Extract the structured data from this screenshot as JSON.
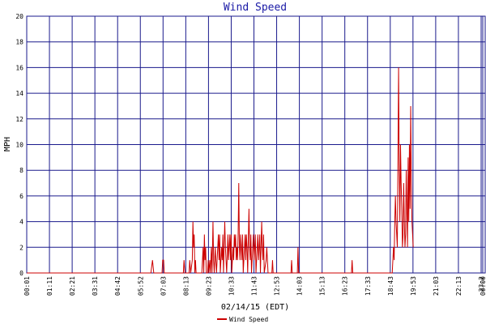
{
  "chart_data": {
    "type": "line",
    "title": "Wind Speed",
    "xlabel": "02/14/15 (EDT)",
    "ylabel": "MPH",
    "ylim": [
      0,
      20
    ],
    "yticks": [
      0,
      2,
      4,
      6,
      8,
      10,
      12,
      14,
      16,
      18,
      20
    ],
    "xlim": [
      0,
      1440
    ],
    "xtick_labels": [
      "00:01",
      "01:11",
      "02:21",
      "03:31",
      "04:42",
      "05:52",
      "07:03",
      "08:13",
      "09:23",
      "10:33",
      "11:43",
      "12:53",
      "14:03",
      "15:13",
      "16:23",
      "17:33",
      "18:43",
      "19:53",
      "21:03",
      "22:13",
      "23:2",
      "00:00"
    ],
    "grid": true,
    "legend": "bottom",
    "series": [
      {
        "name": "Wind Speed",
        "color": "#cc0000",
        "points": [
          [
            0,
            0
          ],
          [
            390,
            0
          ],
          [
            395,
            1
          ],
          [
            399,
            0
          ],
          [
            425,
            0
          ],
          [
            427,
            1
          ],
          [
            430,
            1
          ],
          [
            432,
            0
          ],
          [
            492,
            0
          ],
          [
            494,
            1
          ],
          [
            497,
            0
          ],
          [
            510,
            0
          ],
          [
            512,
            1
          ],
          [
            515,
            0
          ],
          [
            520,
            1
          ],
          [
            522,
            4
          ],
          [
            524,
            2
          ],
          [
            526,
            3
          ],
          [
            528,
            0
          ],
          [
            530,
            1
          ],
          [
            532,
            0
          ],
          [
            550,
            0
          ],
          [
            552,
            1
          ],
          [
            554,
            2
          ],
          [
            556,
            0
          ],
          [
            558,
            3
          ],
          [
            560,
            1
          ],
          [
            562,
            2
          ],
          [
            564,
            0
          ],
          [
            568,
            0
          ],
          [
            570,
            1
          ],
          [
            572,
            0
          ],
          [
            575,
            1
          ],
          [
            577,
            0
          ],
          [
            580,
            2
          ],
          [
            582,
            0
          ],
          [
            585,
            4
          ],
          [
            587,
            1
          ],
          [
            589,
            0
          ],
          [
            592,
            2
          ],
          [
            594,
            1
          ],
          [
            596,
            0
          ],
          [
            600,
            2
          ],
          [
            602,
            3
          ],
          [
            604,
            1
          ],
          [
            606,
            3
          ],
          [
            608,
            0
          ],
          [
            612,
            2
          ],
          [
            614,
            1
          ],
          [
            616,
            3
          ],
          [
            618,
            0
          ],
          [
            622,
            4
          ],
          [
            624,
            2
          ],
          [
            626,
            1
          ],
          [
            628,
            0
          ],
          [
            632,
            3
          ],
          [
            634,
            1
          ],
          [
            636,
            2
          ],
          [
            638,
            3
          ],
          [
            640,
            1
          ],
          [
            642,
            3
          ],
          [
            644,
            0
          ],
          [
            648,
            2
          ],
          [
            650,
            1
          ],
          [
            652,
            3
          ],
          [
            654,
            2
          ],
          [
            656,
            3
          ],
          [
            658,
            1
          ],
          [
            660,
            2
          ],
          [
            662,
            1
          ],
          [
            664,
            3
          ],
          [
            666,
            7
          ],
          [
            668,
            2
          ],
          [
            670,
            1
          ],
          [
            672,
            3
          ],
          [
            674,
            2
          ],
          [
            676,
            1
          ],
          [
            678,
            3
          ],
          [
            680,
            0
          ],
          [
            684,
            2
          ],
          [
            686,
            3
          ],
          [
            688,
            1
          ],
          [
            690,
            3
          ],
          [
            692,
            2
          ],
          [
            694,
            0
          ],
          [
            698,
            5
          ],
          [
            700,
            2
          ],
          [
            702,
            1
          ],
          [
            704,
            3
          ],
          [
            706,
            0
          ],
          [
            710,
            2
          ],
          [
            712,
            3
          ],
          [
            714,
            1
          ],
          [
            716,
            2
          ],
          [
            718,
            3
          ],
          [
            720,
            0
          ],
          [
            724,
            2
          ],
          [
            726,
            3
          ],
          [
            728,
            1
          ],
          [
            730,
            2
          ],
          [
            732,
            3
          ],
          [
            734,
            0
          ],
          [
            738,
            4
          ],
          [
            740,
            2
          ],
          [
            742,
            1
          ],
          [
            744,
            3
          ],
          [
            746,
            0
          ],
          [
            752,
            1
          ],
          [
            754,
            2
          ],
          [
            756,
            1
          ],
          [
            758,
            0
          ],
          [
            770,
            0
          ],
          [
            772,
            1
          ],
          [
            774,
            0
          ],
          [
            830,
            0
          ],
          [
            832,
            1
          ],
          [
            834,
            0
          ],
          [
            850,
            0
          ],
          [
            852,
            2
          ],
          [
            854,
            0
          ],
          [
            1020,
            0
          ],
          [
            1022,
            1
          ],
          [
            1024,
            0
          ],
          [
            1148,
            0
          ],
          [
            1150,
            1
          ],
          [
            1152,
            2
          ],
          [
            1154,
            1
          ],
          [
            1156,
            4
          ],
          [
            1158,
            6
          ],
          [
            1160,
            4
          ],
          [
            1162,
            3
          ],
          [
            1164,
            2
          ],
          [
            1166,
            9
          ],
          [
            1168,
            16
          ],
          [
            1170,
            8
          ],
          [
            1172,
            4
          ],
          [
            1174,
            10
          ],
          [
            1176,
            7
          ],
          [
            1178,
            5
          ],
          [
            1180,
            2
          ],
          [
            1182,
            3
          ],
          [
            1184,
            7
          ],
          [
            1186,
            4
          ],
          [
            1188,
            2
          ],
          [
            1190,
            3
          ],
          [
            1192,
            8
          ],
          [
            1194,
            5
          ],
          [
            1196,
            2
          ],
          [
            1198,
            9
          ],
          [
            1200,
            4
          ],
          [
            1202,
            10
          ],
          [
            1204,
            5
          ],
          [
            1206,
            13
          ],
          [
            1208,
            7
          ],
          [
            1210,
            4
          ],
          [
            1212,
            3
          ],
          [
            1214,
            2
          ]
        ]
      }
    ]
  }
}
